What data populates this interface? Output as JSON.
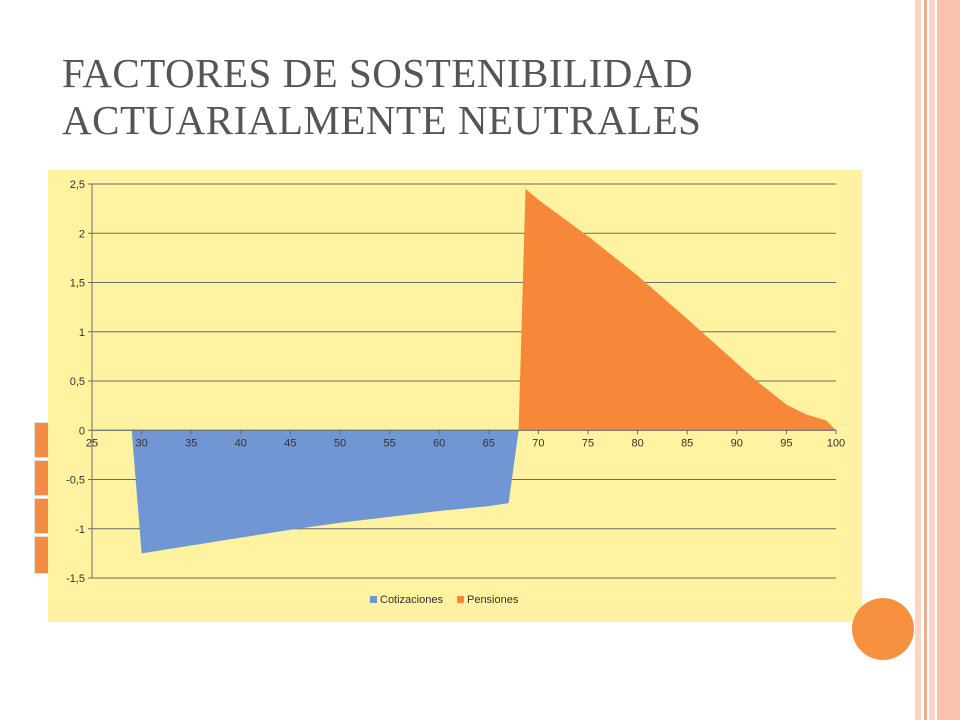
{
  "slide": {
    "title_line1": "FACTORES DE SOSTENIBILIDAD",
    "title_line2": "ACTUARIALMENTE NEUTRALES"
  },
  "colors": {
    "chart_background": "#fff2a0",
    "cotizaciones": "#7096d3",
    "pensiones": "#f7883a",
    "title": "#555555",
    "accent_circle": "#f7913f",
    "stripe_light": "#fbd5c6",
    "stripe_dark": "#f2aa8f"
  },
  "chart_data": {
    "type": "area",
    "title": "",
    "xlabel": "",
    "ylabel": "",
    "xlim": [
      25,
      100
    ],
    "ylim": [
      -1.5,
      2.5
    ],
    "x_ticks": [
      "25",
      "30",
      "35",
      "40",
      "45",
      "50",
      "55",
      "60",
      "65",
      "70",
      "75",
      "80",
      "85",
      "90",
      "95",
      "100"
    ],
    "y_ticks": [
      "2,5",
      "2",
      "1,5",
      "1",
      "0,5",
      "0",
      "-0,5",
      "-1",
      "-1,5"
    ],
    "grid": true,
    "legend_position": "bottom",
    "series": [
      {
        "name": "Cotizaciones",
        "x": [
          29,
          30,
          35,
          40,
          45,
          50,
          55,
          60,
          65,
          67,
          68
        ],
        "y": [
          0,
          -1.25,
          -1.17,
          -1.09,
          -1.01,
          -0.94,
          -0.88,
          -0.82,
          -0.77,
          -0.74,
          0
        ]
      },
      {
        "name": "Pensiones",
        "x": [
          68,
          68.7,
          70,
          75,
          80,
          85,
          90,
          92,
          95,
          97,
          99,
          100
        ],
        "y": [
          0,
          2.45,
          2.34,
          1.97,
          1.57,
          1.13,
          0.68,
          0.5,
          0.26,
          0.16,
          0.1,
          0
        ]
      }
    ]
  }
}
